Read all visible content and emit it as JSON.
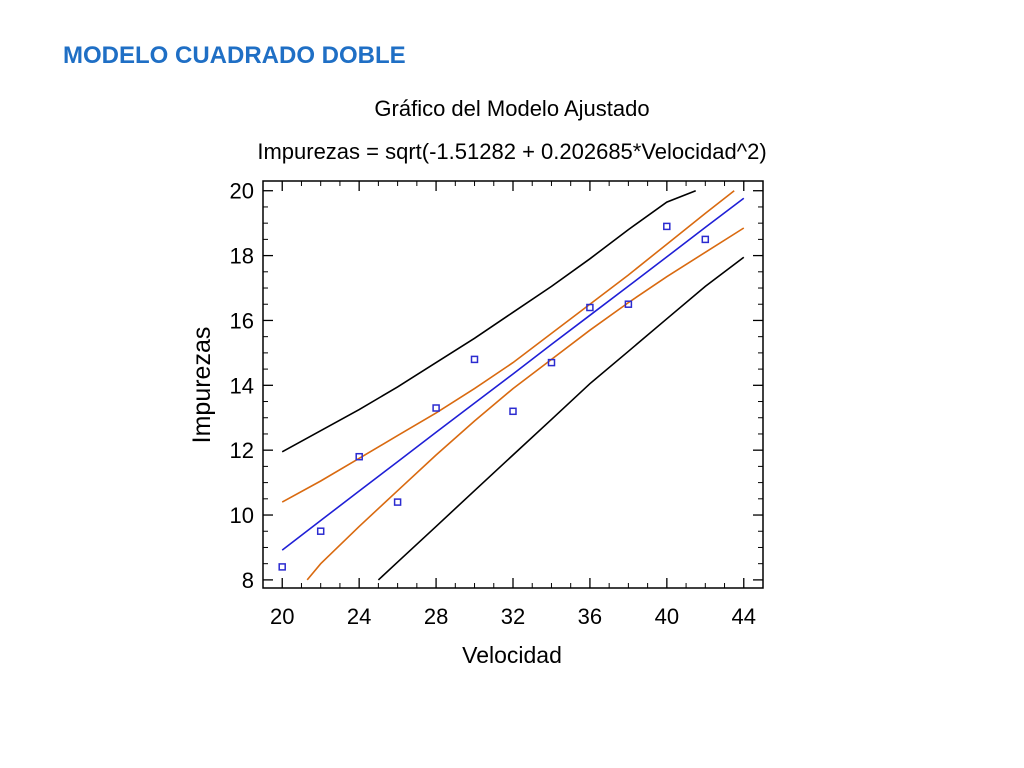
{
  "slide": {
    "heading": "MODELO CUADRADO DOBLE",
    "heading_color": "#1f6fc5"
  },
  "chart_data": {
    "type": "scatter",
    "title": "Gráfico del Modelo Ajustado",
    "subtitle": "Impurezas = sqrt(-1.51282 + 0.202685*Velocidad^2)",
    "xlabel": "Velocidad",
    "ylabel": "Impurezas",
    "xlim": [
      19,
      45
    ],
    "ylim": [
      7.75,
      20.3
    ],
    "xticks": [
      20,
      24,
      28,
      32,
      36,
      40,
      44
    ],
    "yticks": [
      8,
      10,
      12,
      14,
      16,
      18,
      20
    ],
    "xtick_labels": [
      "20",
      "24",
      "28",
      "32",
      "36",
      "40",
      "44"
    ],
    "ytick_labels": [
      "8",
      "10",
      "12",
      "14",
      "16",
      "18",
      "20"
    ],
    "grid": false,
    "points": {
      "x": [
        20,
        22,
        24,
        26,
        28,
        30,
        32,
        34,
        36,
        38,
        40,
        42
      ],
      "y": [
        8.4,
        9.5,
        11.8,
        10.4,
        13.3,
        14.8,
        13.2,
        14.7,
        16.4,
        16.5,
        18.9,
        18.5
      ],
      "color": "#2b2bd0"
    },
    "fitted_line": {
      "x": [
        20,
        22,
        24,
        26,
        28,
        30,
        32,
        34,
        36,
        38,
        40,
        42,
        44
      ],
      "y": [
        8.92,
        9.83,
        10.74,
        11.64,
        12.55,
        13.45,
        14.35,
        15.26,
        16.16,
        17.06,
        17.96,
        18.87,
        19.77
      ],
      "color": "#1f1fd6"
    },
    "confidence_upper": {
      "x": [
        20,
        22,
        24,
        26,
        28,
        30,
        32,
        34,
        36,
        38,
        40,
        42,
        43.5
      ],
      "y": [
        10.4,
        11.05,
        11.75,
        12.45,
        13.15,
        13.9,
        14.7,
        15.6,
        16.5,
        17.4,
        18.35,
        19.3,
        20.0
      ],
      "color": "#d96a10"
    },
    "confidence_lower": {
      "x": [
        21.3,
        22,
        24,
        26,
        28,
        30,
        32,
        34,
        36,
        38,
        40,
        42,
        44
      ],
      "y": [
        8.0,
        8.5,
        9.65,
        10.75,
        11.85,
        12.9,
        13.9,
        14.8,
        15.7,
        16.55,
        17.35,
        18.1,
        18.85
      ],
      "color": "#d96a10"
    },
    "prediction_upper": {
      "x": [
        20,
        22,
        24,
        26,
        28,
        30,
        32,
        34,
        36,
        38,
        40,
        41.5
      ],
      "y": [
        11.95,
        12.6,
        13.25,
        13.95,
        14.7,
        15.45,
        16.25,
        17.05,
        17.9,
        18.8,
        19.65,
        20.0
      ],
      "color": "#000000"
    },
    "prediction_lower": {
      "x": [
        25,
        26,
        28,
        30,
        32,
        34,
        36,
        38,
        40,
        42,
        44
      ],
      "y": [
        8.0,
        8.55,
        9.65,
        10.75,
        11.85,
        12.95,
        14.05,
        15.05,
        16.05,
        17.05,
        17.95
      ],
      "color": "#000000"
    }
  }
}
